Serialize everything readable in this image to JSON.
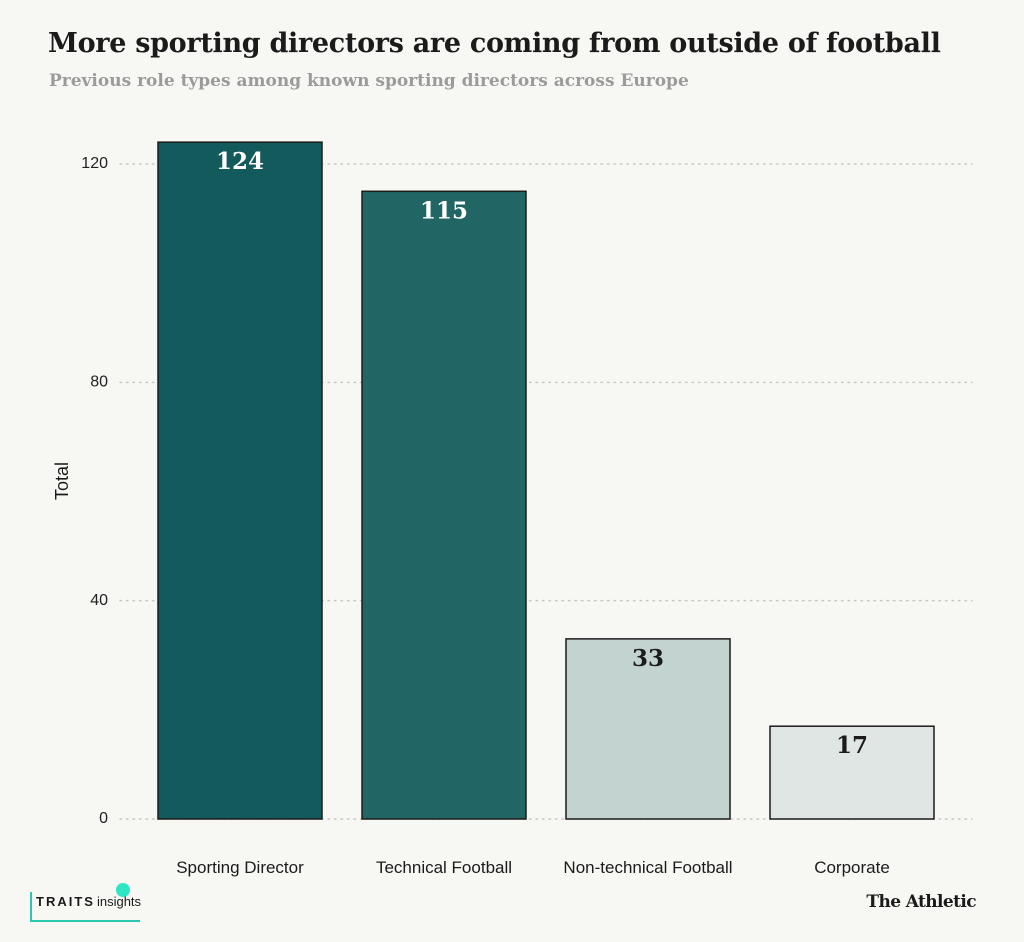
{
  "header": {
    "title": "More sporting directors are coming from outside of football",
    "subtitle": "Previous role types among known sporting directors across Europe"
  },
  "chart_data": {
    "type": "bar",
    "categories": [
      "Sporting Director",
      "Technical Football",
      "Non-technical Football",
      "Corporate"
    ],
    "values": [
      124,
      115,
      33,
      17
    ],
    "data_labels": [
      "124",
      "115",
      "33",
      "17"
    ],
    "bar_colors": [
      "#125a5b",
      "#216665",
      "#c2d3d0",
      "#dfe6e3"
    ],
    "label_colors": [
      "#ffffff",
      "#ffffff",
      "#1b1b1b",
      "#1b1b1b"
    ],
    "title": "More sporting directors are coming from outside of football",
    "subtitle": "Previous role types among known sporting directors across Europe",
    "xlabel": "",
    "ylabel": "Total",
    "ylim": [
      0,
      120
    ],
    "yticks": [
      0,
      40,
      80,
      120
    ],
    "ytick_labels": [
      "0",
      "40",
      "80",
      "120"
    ],
    "grid": "horizontal-dotted"
  },
  "footer": {
    "logo_left_strong": "TRAITS",
    "logo_left_light": "insights",
    "logo_right": "The Athletic"
  },
  "colors": {
    "background": "#f7f7f3",
    "accent": "#2cc8ad",
    "grid": "#c9c9c4",
    "bar_outline": "#1b1b1b"
  }
}
